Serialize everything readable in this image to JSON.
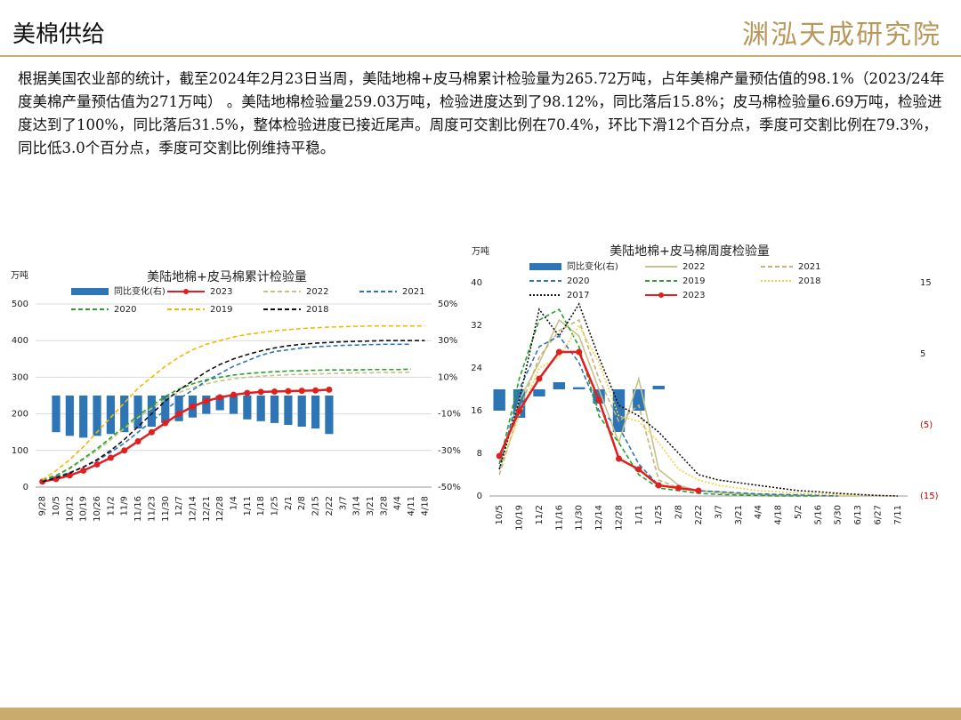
{
  "header": {
    "title": "美棉供给",
    "logo": "渊泓天成研究院"
  },
  "paragraph": "根据美国农业部的统计，截至2024年2月23日当周，美陆地棉+皮马棉累计检验量为265.72万吨，占年美棉产量预估值的98.1%（2023/24年度美棉产量预估值为271万吨） 。美陆地棉检验量259.03万吨，检验进度达到了98.12%，同比落后15.8%；皮马棉检验量6.69万吨，检验进度达到了100%，同比落后31.5%，整体检验进度已接近尾声。周度可交割比例在70.4%，环比下滑12个百分点，季度可交割比例在79.3%，同比低3.0个百分点，季度可交割比例维持平稳。",
  "chart_data": [
    {
      "type": "line",
      "title": "美陆地棉+皮马棉累计检验量",
      "y_label": "万吨",
      "categories": [
        "9/28",
        "10/5",
        "10/12",
        "10/19",
        "10/26",
        "11/2",
        "11/9",
        "11/16",
        "11/23",
        "11/30",
        "12/7",
        "12/14",
        "12/21",
        "12/28",
        "1/4",
        "1/11",
        "1/18",
        "1/25",
        "2/1",
        "2/8",
        "2/15",
        "2/22",
        "3/7",
        "3/14",
        "3/21",
        "3/28",
        "4/4",
        "4/11",
        "4/18"
      ],
      "ylim": [
        0,
        500
      ],
      "yticks": [
        0,
        100,
        200,
        300,
        400,
        500
      ],
      "y2lim": [
        -50,
        50
      ],
      "y2ticks": [
        {
          "value": -50,
          "label": "-50%"
        },
        {
          "value": -30,
          "label": "-30%"
        },
        {
          "value": -10,
          "label": "-10%"
        },
        {
          "value": 10,
          "label": "10%"
        },
        {
          "value": 30,
          "label": "30%"
        },
        {
          "value": 50,
          "label": "50%"
        }
      ],
      "grid": true,
      "series": [
        {
          "name": "同比变化(右)",
          "color": "#2e75b6",
          "style": "bar",
          "axis": "y2",
          "values": [
            null,
            -20,
            -22,
            -23,
            -22,
            -21,
            -20,
            -18,
            -17,
            -15,
            -14,
            -12,
            -10,
            -8,
            -10,
            -13,
            -14,
            -15,
            -16,
            -17,
            -18,
            -21,
            null,
            null,
            null,
            null,
            null,
            null,
            null
          ]
        },
        {
          "name": "2023",
          "color": "#e02020",
          "style": "marker",
          "values": [
            15,
            22,
            32,
            45,
            62,
            80,
            100,
            125,
            150,
            175,
            200,
            220,
            235,
            245,
            252,
            257,
            260,
            261,
            262,
            263,
            264,
            266,
            null,
            null,
            null,
            null,
            null,
            null,
            null
          ]
        },
        {
          "name": "2022",
          "color": "#c4c48a",
          "style": "dash",
          "values": [
            18,
            30,
            50,
            75,
            100,
            130,
            160,
            190,
            215,
            240,
            258,
            272,
            282,
            290,
            296,
            300,
            303,
            305,
            307,
            308,
            309,
            310,
            311,
            312,
            312,
            313,
            313,
            314,
            null
          ]
        },
        {
          "name": "2021",
          "color": "#2e75b6",
          "style": "dash",
          "values": [
            18,
            28,
            40,
            55,
            72,
            95,
            120,
            150,
            180,
            210,
            240,
            265,
            290,
            310,
            330,
            345,
            360,
            370,
            375,
            380,
            383,
            385,
            387,
            388,
            389,
            390,
            390,
            390,
            null
          ]
        },
        {
          "name": "2020",
          "color": "#2ca02c",
          "style": "dash",
          "values": [
            20,
            32,
            52,
            78,
            105,
            135,
            165,
            195,
            222,
            248,
            268,
            282,
            293,
            300,
            306,
            310,
            313,
            315,
            317,
            318,
            319,
            320,
            320,
            320,
            321,
            321,
            321,
            322,
            null
          ]
        },
        {
          "name": "2019",
          "color": "#f5b800",
          "style": "dash",
          "values": [
            20,
            45,
            75,
            110,
            150,
            190,
            230,
            270,
            300,
            330,
            355,
            375,
            390,
            400,
            410,
            417,
            422,
            427,
            430,
            433,
            435,
            437,
            438,
            439,
            440,
            440,
            440,
            440,
            440
          ]
        },
        {
          "name": "2018",
          "color": "#111111",
          "style": "dash",
          "values": [
            15,
            25,
            38,
            55,
            75,
            100,
            130,
            165,
            200,
            235,
            265,
            290,
            315,
            335,
            350,
            362,
            372,
            380,
            386,
            390,
            393,
            395,
            397,
            398,
            399,
            400,
            400,
            400,
            400
          ]
        }
      ]
    },
    {
      "type": "line",
      "title": "美陆地棉+皮马棉周度检验量",
      "y_label": "万吨",
      "categories": [
        "10/5",
        "10/19",
        "11/2",
        "11/16",
        "11/30",
        "12/14",
        "12/28",
        "1/11",
        "1/25",
        "2/8",
        "2/22",
        "3/7",
        "3/21",
        "4/4",
        "4/18",
        "5/2",
        "5/16",
        "5/30",
        "6/13",
        "6/27",
        "7/11"
      ],
      "ylim": [
        0,
        40
      ],
      "yticks": [
        0,
        8,
        16,
        24,
        32,
        40
      ],
      "y2lim": [
        -15,
        15
      ],
      "y2ticks": [
        {
          "value": -15,
          "label": "(15)"
        },
        {
          "value": -5,
          "label": "(5)"
        },
        5,
        15
      ],
      "grid": false,
      "series": [
        {
          "name": "同比变化(右)",
          "color": "#2e75b6",
          "style": "bar",
          "axis": "y2",
          "values": [
            -3,
            -4,
            -1,
            1,
            0.3,
            -2,
            -6,
            -3,
            0.5,
            null,
            null,
            null,
            null,
            null,
            null,
            null,
            null,
            null,
            null,
            null,
            null
          ]
        },
        {
          "name": "2022",
          "color": "#c4c48a",
          "style": "solid",
          "values": [
            6,
            18,
            25,
            33,
            30,
            20,
            10,
            22,
            5,
            2,
            1,
            0.8,
            0.5,
            0.3,
            0.2,
            0.1,
            0,
            0,
            0,
            null,
            null
          ]
        },
        {
          "name": "2021",
          "color": "#c8b27a",
          "style": "dash",
          "values": [
            4,
            16,
            26,
            31,
            33,
            22,
            14,
            17,
            3,
            1.5,
            1,
            0.6,
            0.4,
            0.3,
            0.2,
            0.1,
            0,
            0,
            null,
            null,
            null
          ]
        },
        {
          "name": "2020",
          "color": "#2e75b6",
          "style": "dash",
          "values": [
            5,
            20,
            28,
            30,
            25,
            16,
            13,
            6,
            2,
            1.5,
            1,
            0.8,
            0.6,
            0.4,
            0.3,
            0.2,
            0.1,
            0,
            null,
            null,
            null
          ]
        },
        {
          "name": "2019",
          "color": "#2ca02c",
          "style": "dash",
          "values": [
            6,
            22,
            33,
            35,
            28,
            15,
            10,
            4,
            1.5,
            1,
            0.5,
            0.3,
            0.2,
            0.1,
            0,
            0,
            0,
            null,
            null,
            null,
            null
          ]
        },
        {
          "name": "2018",
          "color": "#f5d040",
          "style": "dot",
          "values": [
            5,
            15,
            24,
            26,
            32,
            25,
            15,
            14,
            10,
            5,
            3,
            2,
            1.5,
            1,
            0.8,
            0.5,
            0.4,
            0.3,
            0.2,
            0.1,
            0
          ]
        },
        {
          "name": "2017",
          "color": "#111111",
          "style": "dot",
          "values": [
            5,
            18,
            35,
            30,
            36,
            26,
            17,
            15,
            12,
            8,
            4,
            3,
            2.5,
            2,
            1.5,
            1,
            0.8,
            0.5,
            0.3,
            0.1,
            0
          ]
        },
        {
          "name": "2023",
          "color": "#e02020",
          "style": "marker",
          "values": [
            7.5,
            16,
            22,
            27,
            27,
            18,
            7,
            5,
            2,
            1.5,
            1,
            null,
            null,
            null,
            null,
            null,
            null,
            null,
            null,
            null,
            null
          ]
        }
      ]
    }
  ]
}
